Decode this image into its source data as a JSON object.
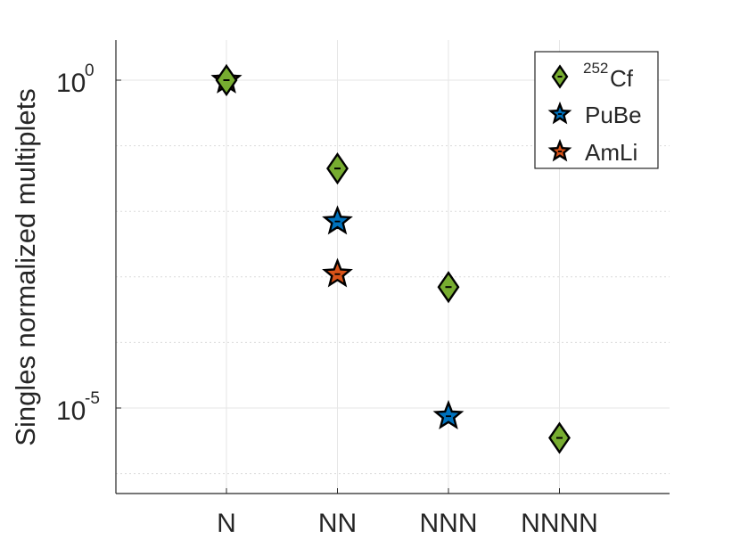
{
  "chart_data": {
    "type": "scatter",
    "categories": [
      "N",
      "NN",
      "NNN",
      "NNNN"
    ],
    "ylabel": "Singles normalized multiplets",
    "yscale": "log",
    "ylim": [
      2e-07,
      4
    ],
    "y_ticks": [
      {
        "base": "10",
        "exp": "0",
        "value": 1
      },
      {
        "base": "10",
        "exp": "-5",
        "value": 1e-05
      }
    ],
    "y_minor_gridlines": [
      0.1,
      0.01,
      0.001,
      0.0001,
      1e-06
    ],
    "grid": true,
    "legend_position": "top-right",
    "series": [
      {
        "name_prefix": "252",
        "name": "Cf",
        "marker": "diamond",
        "color": "#77ac30",
        "x": [
          "N",
          "NN",
          "NNN",
          "NNNN"
        ],
        "values": [
          1.0,
          0.045,
          0.0007,
          3.5e-06
        ]
      },
      {
        "name": "PuBe",
        "marker": "star",
        "color": "#0072bd",
        "x": [
          "N",
          "NN"
        ],
        "values": [
          1.0,
          0.007
        ]
      },
      {
        "name": "AmLi",
        "marker": "star",
        "color": "#d95319",
        "x": [
          "N",
          "NN"
        ],
        "values": [
          1.0,
          0.0011
        ]
      },
      {
        "name": "PuBe",
        "marker": "star",
        "color": "#0072bd",
        "x": [
          "NNN"
        ],
        "values": [
          7.5e-06
        ],
        "legend": false
      }
    ]
  }
}
